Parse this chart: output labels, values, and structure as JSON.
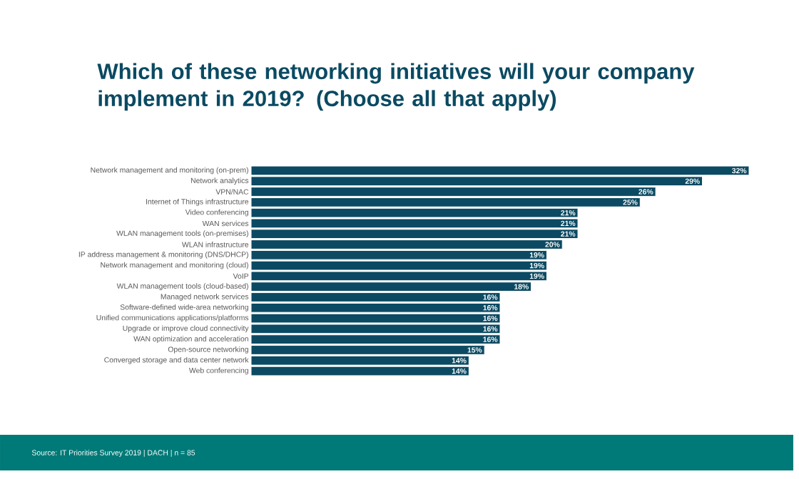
{
  "chart_data": {
    "type": "bar",
    "orientation": "horizontal",
    "title": "Which of these networking initiatives will your company implement in 2019? (Choose all that apply)",
    "categories": [
      "Network management and monitoring (on-prem)",
      "Network analytics",
      "VPN/NAC",
      "Internet of Things infrastructure",
      "Video conferencing",
      "WAN services",
      "WLAN management tools (on-premises)",
      "WLAN infrastructure",
      "IP address management & monitoring (DNS/DHCP)",
      "Network management and monitoring (cloud)",
      "VoIP",
      "WLAN management tools (cloud-based)",
      "Managed network services",
      "Software-defined wide-area networking",
      "Unified communications applications/platforms",
      "Upgrade or improve cloud connectivity",
      "WAN optimization and acceleration",
      "Open-source networking",
      "Converged storage and data center network",
      "Web conferencing"
    ],
    "values": [
      32,
      29,
      26,
      25,
      21,
      21,
      21,
      20,
      19,
      19,
      19,
      18,
      16,
      16,
      16,
      16,
      16,
      15,
      14,
      14
    ],
    "value_labels": [
      "32%",
      "29%",
      "26%",
      "25%",
      "21%",
      "21%",
      "21%",
      "20%",
      "19%",
      "19%",
      "19%",
      "18%",
      "16%",
      "16%",
      "16%",
      "16%",
      "16%",
      "15%",
      "14%",
      "14%"
    ],
    "color": "#0b4a62",
    "annotations": [
      "Source: IT Priorities Survey 2019 | DACH | n = 85"
    ]
  }
}
